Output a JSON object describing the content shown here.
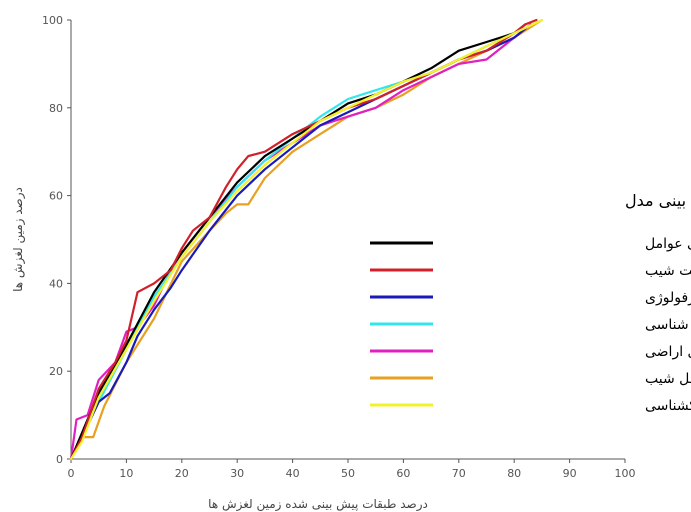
{
  "chart_data": {
    "type": "line",
    "xlabel": "درصد طبقات پیش بینی شده زمین لغزش ها",
    "ylabel": "درصد زمین لغزش ها",
    "xlim": [
      0,
      100
    ],
    "ylim": [
      0,
      100
    ],
    "x_ticks": [
      "0",
      "10",
      "20",
      "30",
      "40",
      "50",
      "60",
      "70",
      "80",
      "90",
      "100"
    ],
    "y_ticks": [
      "0",
      "20",
      "40",
      "60",
      "80",
      "100"
    ],
    "grid": false,
    "legend": {
      "title": "میزان دقت پیش بینی مدل",
      "placement": "right-middle"
    },
    "series": [
      {
        "name": "تمامی عوامل",
        "color": "#000000",
        "points": [
          [
            0,
            0
          ],
          [
            2,
            6
          ],
          [
            5,
            15
          ],
          [
            10,
            26
          ],
          [
            15,
            38
          ],
          [
            20,
            47
          ],
          [
            25,
            55
          ],
          [
            30,
            63
          ],
          [
            35,
            69
          ],
          [
            40,
            73
          ],
          [
            45,
            77
          ],
          [
            50,
            81
          ],
          [
            55,
            83
          ],
          [
            60,
            86
          ],
          [
            65,
            89
          ],
          [
            70,
            93
          ],
          [
            75,
            95
          ],
          [
            80,
            97
          ],
          [
            82,
            99
          ]
        ]
      },
      {
        "name": "بدون عامل جهت شیب",
        "color": "#d0202a",
        "points": [
          [
            0,
            0
          ],
          [
            2,
            5
          ],
          [
            5,
            16
          ],
          [
            8,
            22
          ],
          [
            10,
            27
          ],
          [
            12,
            38
          ],
          [
            15,
            40
          ],
          [
            18,
            43
          ],
          [
            20,
            48
          ],
          [
            22,
            52
          ],
          [
            25,
            55
          ],
          [
            28,
            62
          ],
          [
            30,
            66
          ],
          [
            32,
            69
          ],
          [
            35,
            70
          ],
          [
            40,
            74
          ],
          [
            45,
            77
          ],
          [
            50,
            80
          ],
          [
            55,
            82
          ],
          [
            60,
            85
          ],
          [
            65,
            88
          ],
          [
            70,
            91
          ],
          [
            75,
            93
          ],
          [
            80,
            97
          ],
          [
            82,
            99
          ],
          [
            84,
            100
          ]
        ]
      },
      {
        "name": "بدون عامل ژئومورفولوژی",
        "color": "#1a1ab8",
        "points": [
          [
            0,
            0
          ],
          [
            2,
            5
          ],
          [
            5,
            13
          ],
          [
            7,
            15
          ],
          [
            10,
            22
          ],
          [
            12,
            28
          ],
          [
            15,
            34
          ],
          [
            18,
            39
          ],
          [
            20,
            43
          ],
          [
            25,
            52
          ],
          [
            30,
            60
          ],
          [
            35,
            66
          ],
          [
            40,
            71
          ],
          [
            45,
            76
          ],
          [
            50,
            79
          ],
          [
            55,
            82
          ],
          [
            60,
            85
          ],
          [
            65,
            88
          ],
          [
            70,
            91
          ],
          [
            75,
            93
          ],
          [
            80,
            96
          ],
          [
            82,
            98
          ]
        ]
      },
      {
        "name": "بدون عامل سنگ شناسی",
        "color": "#33e6ee",
        "points": [
          [
            0,
            0
          ],
          [
            2,
            5
          ],
          [
            5,
            13
          ],
          [
            10,
            25
          ],
          [
            15,
            37
          ],
          [
            20,
            46
          ],
          [
            25,
            54
          ],
          [
            30,
            62
          ],
          [
            35,
            68
          ],
          [
            40,
            73
          ],
          [
            45,
            78
          ],
          [
            50,
            82
          ],
          [
            55,
            84
          ],
          [
            60,
            86
          ],
          [
            65,
            88
          ],
          [
            70,
            91
          ],
          [
            75,
            94
          ],
          [
            80,
            97
          ]
        ]
      },
      {
        "name": "بدون عامل کاربری اراضی",
        "color": "#e020c0",
        "points": [
          [
            0,
            0
          ],
          [
            1,
            9
          ],
          [
            3,
            10
          ],
          [
            5,
            18
          ],
          [
            8,
            22
          ],
          [
            10,
            29
          ],
          [
            12,
            30
          ],
          [
            15,
            35
          ],
          [
            18,
            43
          ],
          [
            20,
            47
          ],
          [
            25,
            55
          ],
          [
            30,
            62
          ],
          [
            35,
            68
          ],
          [
            40,
            72
          ],
          [
            45,
            76
          ],
          [
            50,
            78
          ],
          [
            55,
            80
          ],
          [
            60,
            84
          ],
          [
            65,
            87
          ],
          [
            70,
            90
          ],
          [
            75,
            91
          ],
          [
            80,
            96
          ],
          [
            83,
            99
          ]
        ]
      },
      {
        "name": "بدون عامل شیب",
        "color": "#e8a020",
        "points": [
          [
            0,
            0
          ],
          [
            2,
            5
          ],
          [
            4,
            5
          ],
          [
            6,
            12
          ],
          [
            10,
            22
          ],
          [
            15,
            32
          ],
          [
            20,
            45
          ],
          [
            25,
            52
          ],
          [
            28,
            56
          ],
          [
            30,
            58
          ],
          [
            32,
            58
          ],
          [
            35,
            64
          ],
          [
            40,
            70
          ],
          [
            45,
            74
          ],
          [
            50,
            78
          ],
          [
            55,
            80
          ],
          [
            60,
            83
          ],
          [
            65,
            87
          ],
          [
            70,
            90
          ],
          [
            75,
            93
          ],
          [
            80,
            96
          ],
          [
            85,
            100
          ]
        ]
      },
      {
        "name": "بدون عامل خاکشناسی",
        "color": "#f2f22a",
        "points": [
          [
            0,
            0
          ],
          [
            2,
            4
          ],
          [
            5,
            14
          ],
          [
            10,
            25
          ],
          [
            15,
            36
          ],
          [
            20,
            46
          ],
          [
            25,
            54
          ],
          [
            30,
            61
          ],
          [
            35,
            67
          ],
          [
            40,
            72
          ],
          [
            45,
            77
          ],
          [
            50,
            80
          ],
          [
            55,
            83
          ],
          [
            60,
            86
          ],
          [
            65,
            88
          ],
          [
            70,
            91
          ],
          [
            75,
            94
          ],
          [
            80,
            97
          ],
          [
            85,
            100
          ]
        ]
      }
    ]
  }
}
